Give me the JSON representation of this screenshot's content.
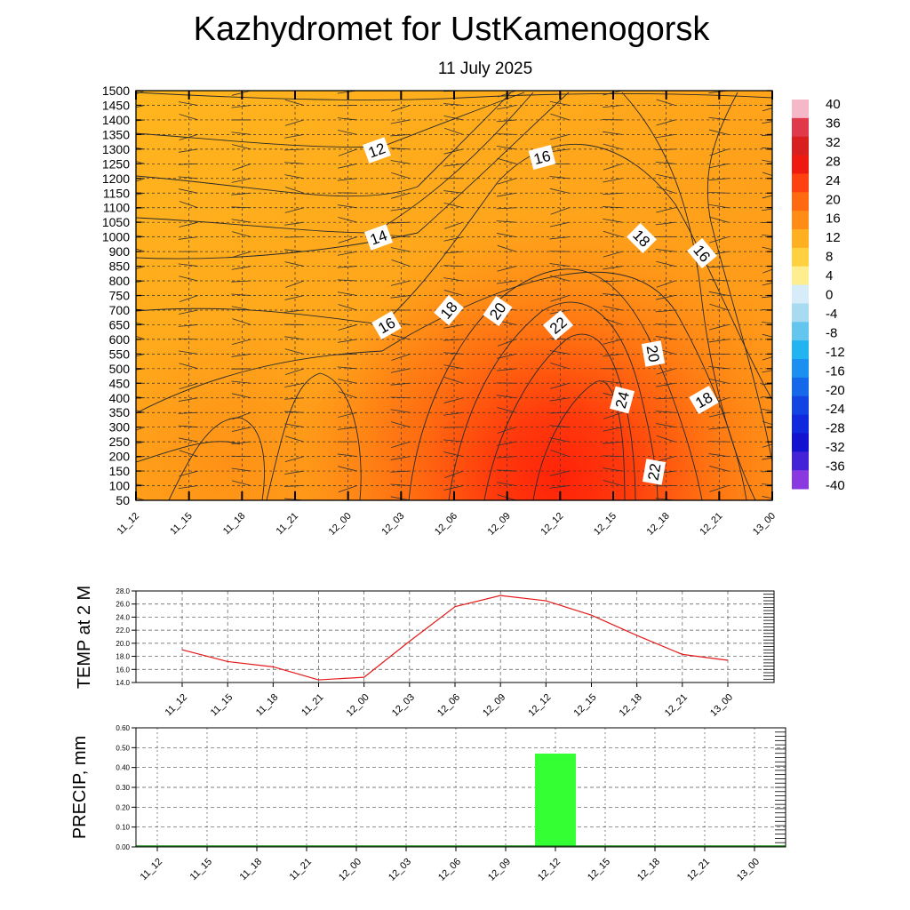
{
  "chart_data": [
    {
      "type": "heatmap",
      "title": "Kazhydromet  for UstKamenogorsk",
      "subtitle": "11 July 2025",
      "x_ticks": [
        "11_12",
        "11_15",
        "11_18",
        "11_21",
        "12_00",
        "12_03",
        "12_06",
        "12_09",
        "12_12",
        "12_15",
        "12_18",
        "12_21",
        "13_00"
      ],
      "y_ticks": [
        "1500",
        "1450",
        "1400",
        "1350",
        "1300",
        "1250",
        "1200",
        "1150",
        "1100",
        "1050",
        "1000",
        "900",
        "850",
        "800",
        "750",
        "700",
        "650",
        "600",
        "550",
        "500",
        "450",
        "400",
        "350",
        "300",
        "250",
        "200",
        "150",
        "100",
        "50"
      ],
      "colorbar": {
        "labels": [
          "40",
          "36",
          "32",
          "28",
          "24",
          "20",
          "16",
          "12",
          "8",
          "4",
          "0",
          "-4",
          "-8",
          "-12",
          "-16",
          "-20",
          "-24",
          "-28",
          "-32",
          "-36",
          "-40"
        ],
        "colors": [
          "#f5b8c8",
          "#e03a4a",
          "#d81e1e",
          "#ee1a10",
          "#ff4010",
          "#ff6a10",
          "#ff8c14",
          "#ffb020",
          "#ffd040",
          "#ffee90",
          "#d6ecf8",
          "#a8daf2",
          "#64c6ee",
          "#22b4f0",
          "#1c90f0",
          "#1668ea",
          "#1244e4",
          "#1028de",
          "#1212d0",
          "#4422d8",
          "#8a38e0"
        ]
      },
      "contour_labels": [
        "12",
        "14",
        "16",
        "16",
        "18",
        "20",
        "22",
        "24",
        "22",
        "20",
        "18",
        "18",
        "16"
      ]
    },
    {
      "type": "line",
      "ylabel": "TEMP at 2 M",
      "x": [
        "11_12",
        "11_15",
        "11_18",
        "11_21",
        "12_00",
        "12_03",
        "12_06",
        "12_09",
        "12_12",
        "12_15",
        "12_18",
        "12_21",
        "13_00"
      ],
      "y_ticks": [
        "28.0",
        "26.0",
        "24.0",
        "22.0",
        "20.0",
        "18.0",
        "16.0",
        "14.0"
      ],
      "ylim": [
        14.0,
        28.0
      ],
      "values": [
        19.0,
        17.2,
        16.4,
        14.4,
        14.8,
        20.3,
        25.6,
        27.3,
        26.5,
        24.3,
        21.2,
        18.3,
        17.4
      ],
      "line_color": "#e41a1c"
    },
    {
      "type": "bar",
      "ylabel": "PRECIP, mm",
      "x": [
        "11_12",
        "11_15",
        "11_18",
        "11_21",
        "12_00",
        "12_03",
        "12_06",
        "12_09",
        "12_12",
        "12_15",
        "12_18",
        "12_21",
        "13_00"
      ],
      "y_ticks": [
        "0.60",
        "0.50",
        "0.40",
        "0.30",
        "0.20",
        "0.10",
        "0.00"
      ],
      "ylim": [
        0.0,
        0.6
      ],
      "values": [
        0,
        0,
        0,
        0,
        0,
        0,
        0,
        0,
        0.47,
        0,
        0,
        0,
        0
      ],
      "bar_color": "#33ff33"
    }
  ]
}
